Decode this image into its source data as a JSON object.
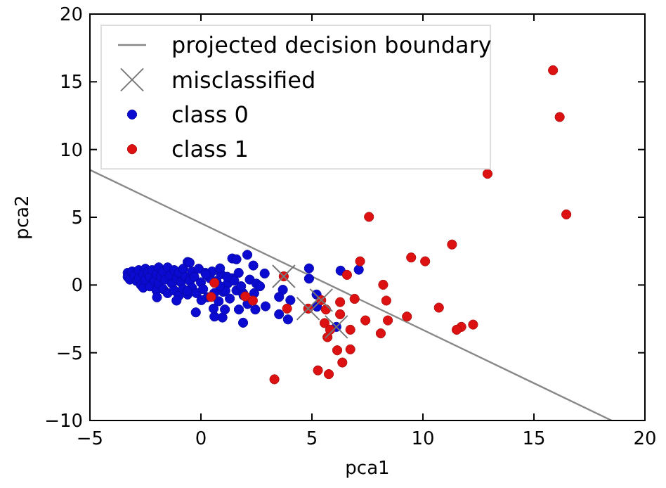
{
  "chart_data": {
    "type": "scatter",
    "xlabel": "pca1",
    "ylabel": "pca2",
    "xlim": [
      -5,
      20
    ],
    "ylim": [
      -10,
      20
    ],
    "xticks": [
      {
        "value": -5,
        "label": "−5"
      },
      0,
      5,
      10,
      15,
      20
    ],
    "yticks": [
      {
        "value": -10,
        "label": "−10"
      },
      {
        "value": -5,
        "label": "−5"
      },
      0,
      5,
      10,
      15,
      20
    ],
    "grid": false,
    "legend": "top left",
    "series": [
      {
        "name": "projected decision boundary",
        "type": "line",
        "color": "#888888",
        "marker": "none",
        "x": [
          -5,
          18.5
        ],
        "values": [
          8.5,
          -10
        ]
      },
      {
        "name": "misclassified",
        "type": "scatter",
        "color": "#777777",
        "marker": "cross",
        "x": [
          3.73,
          4.83,
          5.42,
          6.1
        ],
        "values": [
          0.64,
          -1.74,
          -1.12,
          -3.09
        ]
      },
      {
        "name": "class 0",
        "color": "#0a0ad0",
        "marker": "circle",
        "x": [
          -3.3,
          -3.3,
          -3.2,
          -3.1,
          -3.0,
          -2.9,
          -2.8,
          -2.8,
          -2.7,
          -2.6,
          -2.6,
          -2.5,
          -2.5,
          -2.4,
          -2.3,
          -2.3,
          -2.2,
          -2.1,
          -2.0,
          -2.0,
          -1.9,
          -1.9,
          -1.8,
          -1.7,
          -1.7,
          -1.6,
          -1.5,
          -1.5,
          -1.4,
          -1.3,
          -1.2,
          -1.2,
          -1.1,
          -1.0,
          -1.0,
          -0.9,
          -0.8,
          -0.8,
          -0.7,
          -0.6,
          -0.6,
          -0.5,
          -0.4,
          -0.4,
          -0.3,
          -0.2,
          -0.1,
          0.0,
          0.1,
          0.2,
          0.3,
          0.4,
          0.5,
          0.6,
          0.7,
          0.8,
          0.9,
          1.0,
          1.2,
          1.3,
          1.4,
          1.6,
          1.7,
          1.9,
          2.1,
          2.2,
          2.4,
          2.5,
          2.09,
          1.41,
          1.6,
          0.86,
          2.36,
          2.87,
          4.87,
          4.87,
          6.29,
          7.11,
          3.69,
          3.52,
          4.03,
          3.52,
          3.92,
          5.21,
          5.23,
          2.91,
          1.9,
          0.97,
          0.61,
          -0.23,
          0.57,
          -1.98,
          -1.1,
          1.1,
          1.5,
          1.81,
          1.71,
          1.08,
          0.23,
          -0.51,
          1.18,
          1.92,
          2.45,
          2.66,
          0.86,
          0.02,
          -0.61,
          6.1
        ],
        "values": [
          0.9,
          0.6,
          0.4,
          1.0,
          0.7,
          0.3,
          1.1,
          0.5,
          0.0,
          0.8,
          -0.2,
          1.2,
          0.4,
          0.9,
          -0.1,
          0.6,
          1.1,
          0.3,
          -0.4,
          0.8,
          1.3,
          0.1,
          0.6,
          -0.3,
          1.0,
          0.4,
          1.3,
          -0.6,
          0.7,
          0.1,
          1.1,
          -0.4,
          0.5,
          0.9,
          -0.8,
          0.2,
          1.2,
          -0.3,
          0.6,
          1.7,
          -0.7,
          0.3,
          1.0,
          -0.2,
          0.6,
          -0.6,
          1.2,
          0.2,
          -0.3,
          0.9,
          -0.9,
          0.5,
          1.0,
          -0.6,
          0.3,
          -1.2,
          0.8,
          -0.5,
          0.1,
          -1.0,
          0.5,
          -0.4,
          0.9,
          -0.6,
          -1.4,
          0.4,
          -0.6,
          0.1,
          2.23,
          1.96,
          1.9,
          1.23,
          1.44,
          0.85,
          1.23,
          0.47,
          1.06,
          1.13,
          -0.35,
          -0.88,
          -1.12,
          -2.16,
          -2.54,
          -0.7,
          -1.6,
          -1.57,
          -2.78,
          -2.4,
          -2.33,
          -2.02,
          -1.74,
          -0.91,
          -1.15,
          -0.43,
          0.33,
          -0.09,
          -1.81,
          -1.81,
          0.78,
          1.65,
          0.61,
          -0.77,
          -1.81,
          -0.09,
          -0.09,
          -1.12,
          -0.43,
          -3.09
        ]
      },
      {
        "name": "class 1",
        "color": "#dd1111",
        "marker": "circle",
        "x": [
          15.86,
          16.16,
          12.91,
          16.46,
          7.57,
          11.31,
          9.47,
          10.1,
          7.17,
          6.58,
          8.21,
          6.92,
          8.35,
          6.27,
          10.72,
          5.63,
          6.27,
          7.41,
          8.42,
          5.57,
          9.28,
          12.26,
          11.73,
          11.52,
          8.1,
          6.73,
          5.82,
          5.7,
          6.14,
          6.73,
          6.37,
          5.27,
          5.76,
          3.31,
          3.73,
          3.88,
          4.83,
          5.42,
          2.34,
          2.0,
          0.61,
          0.46
        ],
        "values": [
          15.85,
          12.4,
          8.21,
          5.21,
          5.03,
          2.99,
          2.03,
          1.75,
          1.75,
          0.75,
          0.02,
          -1.02,
          -1.15,
          -1.26,
          -1.67,
          -1.81,
          -2.16,
          -2.61,
          -2.61,
          -2.81,
          -2.33,
          -2.92,
          -3.09,
          -3.3,
          -3.57,
          -3.3,
          -3.3,
          -3.85,
          -4.82,
          -4.75,
          -5.72,
          -6.3,
          -6.58,
          -6.96,
          0.64,
          -1.74,
          -1.74,
          -1.12,
          -1.15,
          -0.84,
          0.16,
          -0.88
        ]
      }
    ]
  }
}
